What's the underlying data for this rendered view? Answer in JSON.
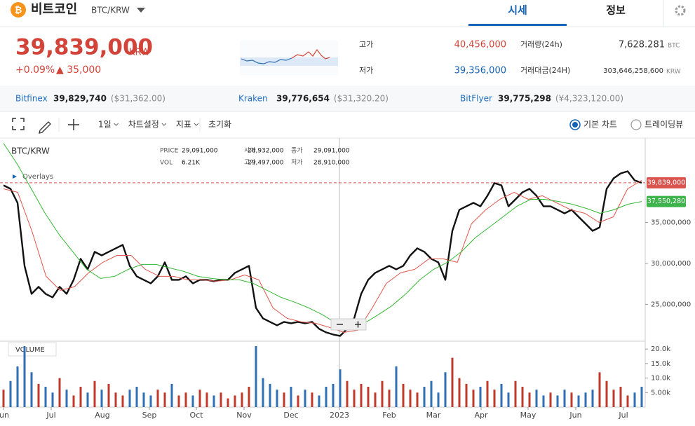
{
  "header": {
    "coin": "비트코인",
    "pair": "BTC/KRW",
    "tabs": [
      "시세",
      "정보"
    ]
  },
  "summary": {
    "price": "39,839,000",
    "unit": "KRW",
    "change_pct": "+0.09%",
    "change": "▲ 35,000"
  },
  "stats": {
    "high_label": "고가",
    "high": "40,456,000",
    "low_label": "저가",
    "low": "39,356,000",
    "volume_label": "거래량(24h)",
    "volume": "7,628.281",
    "volume_unit": "BTC",
    "amount_label": "거래대금(24H)",
    "amount": "303,646,258,600",
    "amount_unit": "KRW"
  },
  "exchanges": [
    {
      "name": "Bitfinex",
      "price": "39,829,740",
      "alt": "($31,362.00)"
    },
    {
      "name": "Kraken",
      "price": "39,776,654",
      "alt": "($31,320.20)"
    },
    {
      "name": "BitFlyer",
      "price": "39,775,298",
      "alt": "(¥4,323,120.00)"
    }
  ],
  "toolbar": {
    "buttons": [
      "1일",
      "차트설정",
      "지표",
      "초기화"
    ],
    "modes": [
      "기본 차트",
      "트레이딩뷰"
    ]
  },
  "info": {
    "symbol": "BTC/KRW",
    "overlays": "Overlays",
    "volume_title": "VOLUME",
    "cells": [
      [
        "PRICE",
        "29,091,000"
      ],
      [
        "시가",
        "28,932,000"
      ],
      [
        "종가",
        "29,091,000"
      ],
      [
        "VOL",
        "6.21K"
      ],
      [
        "고가",
        "29,497,000"
      ],
      [
        "저가",
        "28,910,000"
      ]
    ]
  },
  "chart_data": {
    "type": "line",
    "series": [
      {
        "color": "#111111",
        "width": 2.4,
        "values": [
          39530000,
          39100000,
          37390000,
          29700000,
          26280000,
          27140000,
          26280000,
          25850000,
          27140000,
          26280000,
          27990000,
          30560000,
          29270000,
          31410000,
          30980000,
          31410000,
          31840000,
          32260000,
          29700000,
          28420000,
          27990000,
          27560000,
          28420000,
          30130000,
          27990000,
          27990000,
          28420000,
          27560000,
          27990000,
          27990000,
          27820000,
          27990000,
          27990000,
          28850000,
          29270000,
          29700000,
          24570000,
          23290000,
          22860000,
          22440000,
          22860000,
          22690000,
          22860000,
          22690000,
          22860000,
          22010000,
          21580000,
          21320000,
          21150000,
          22010000,
          23290000,
          26280000,
          27990000,
          28850000,
          29270000,
          29700000,
          29270000,
          29700000,
          30980000,
          31840000,
          31410000,
          30560000,
          30130000,
          27990000,
          33970000,
          36540000,
          36970000,
          37390000,
          36970000,
          38250000,
          39790000,
          39530000,
          36970000,
          37820000,
          38680000,
          39100000,
          38250000,
          36970000,
          36970000,
          36540000,
          36110000,
          36540000,
          35680000,
          34830000,
          33970000,
          34400000,
          39100000,
          40380000,
          40980000,
          41240000,
          40130000,
          39839000
        ]
      },
      {
        "color": "#e0544a",
        "width": 1,
        "values": [
          39100000,
          38680000,
          33970000,
          28420000,
          26710000,
          27140000,
          28850000,
          30130000,
          30980000,
          30980000,
          29270000,
          28420000,
          28420000,
          27990000,
          27990000,
          27820000,
          27990000,
          28590000,
          27990000,
          24570000,
          23290000,
          22860000,
          22690000,
          22180000,
          21580000,
          21840000,
          24570000,
          27560000,
          28850000,
          29270000,
          30560000,
          30560000,
          30130000,
          34830000,
          36540000,
          37820000,
          38680000,
          37820000,
          38250000,
          37390000,
          36540000,
          36110000,
          35000000,
          35680000,
          39100000,
          40130000
        ]
      },
      {
        "color": "#33b833",
        "width": 1,
        "values": [
          44660000,
          42090000,
          39100000,
          36110000,
          33550000,
          31410000,
          29270000,
          28160000,
          28420000,
          29270000,
          29870000,
          29870000,
          29440000,
          29020000,
          28420000,
          28160000,
          27990000,
          27990000,
          27560000,
          26710000,
          25850000,
          25260000,
          24570000,
          23720000,
          22690000,
          22010000,
          22690000,
          23720000,
          24830000,
          26280000,
          27990000,
          29270000,
          30130000,
          31410000,
          33120000,
          34400000,
          35680000,
          36970000,
          37820000,
          37820000,
          37560000,
          37220000,
          36710000,
          36110000,
          36540000,
          37220000,
          37550280
        ]
      }
    ],
    "xlim": [
      -0.5,
      91.5
    ],
    "xticks": [
      {
        "value": 0,
        "label": "un"
      },
      {
        "value": 6.8,
        "label": "Jul"
      },
      {
        "value": 14.1,
        "label": "Aug"
      },
      {
        "value": 20.8,
        "label": "Sep"
      },
      {
        "value": 27.5,
        "label": "Oct"
      },
      {
        "value": 34.3,
        "label": "Nov"
      },
      {
        "value": 41,
        "label": "Dec"
      },
      {
        "value": 47.9,
        "label": "2023"
      },
      {
        "value": 55,
        "label": "Feb"
      },
      {
        "value": 61.3,
        "label": "Mar"
      },
      {
        "value": 68.1,
        "label": "Apr"
      },
      {
        "value": 74.8,
        "label": "May"
      },
      {
        "value": 81.6,
        "label": "Jun"
      },
      {
        "value": 88.4,
        "label": "Jul"
      }
    ],
    "ylim": [
      20500000,
      45300000
    ],
    "yticks": [
      {
        "value": 25000000,
        "label": "25,000,000"
      },
      {
        "value": 30000000,
        "label": "30,000,000"
      },
      {
        "value": 35000000,
        "label": "35,000,000"
      }
    ],
    "price_tags": [
      {
        "value": 39839000,
        "label": "39,839,000",
        "color": "#d9534f"
      },
      {
        "value": 37550280,
        "label": "37,550,280",
        "color": "#3cb44b"
      }
    ],
    "volume": {
      "type": "bar",
      "up_color": "#c0392b",
      "down_color": "#2f6fb5",
      "values": [
        6000,
        9000,
        14000,
        21000,
        12000,
        8000,
        7000,
        5000,
        10000,
        6000,
        4000,
        7000,
        5000,
        9000,
        6000,
        8000,
        5000,
        4000,
        6000,
        7000,
        5000,
        4000,
        6000,
        5000,
        8000,
        4000,
        5000,
        4000,
        6000,
        5000,
        4000,
        5000,
        3000,
        4000,
        5000,
        7000,
        21000,
        10000,
        8000,
        6000,
        5000,
        7000,
        4000,
        6000,
        5000,
        4000,
        7000,
        8000,
        13000,
        9000,
        6000,
        8000,
        7000,
        5000,
        9000,
        6000,
        14000,
        8000,
        6000,
        5000,
        7000,
        9000,
        5000,
        12000,
        17000,
        10000,
        8000,
        6000,
        7000,
        9000,
        6000,
        8000,
        5000,
        9000,
        7000,
        5000,
        6000,
        4000,
        5000,
        4000,
        6000,
        5000,
        4000,
        5000,
        6000,
        12000,
        9000,
        6000,
        7000,
        4000,
        5000,
        7000
      ],
      "ylim": [
        0,
        22700
      ],
      "yticks": [
        {
          "value": 5000,
          "label": "5.00k"
        },
        {
          "value": 10000,
          "label": "10.0k"
        },
        {
          "value": 15000,
          "label": "15.0k"
        },
        {
          "value": 20000,
          "label": "20.0k"
        }
      ]
    }
  }
}
